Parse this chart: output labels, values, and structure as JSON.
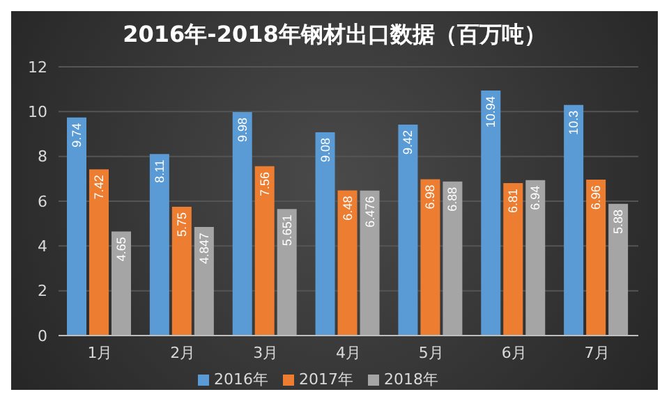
{
  "chart_data": {
    "type": "bar",
    "title": "2016年-2018年钢材出口数据（百万吨）",
    "categories": [
      "1月",
      "2月",
      "3月",
      "4月",
      "5月",
      "6月",
      "7月"
    ],
    "series": [
      {
        "name": "2016年",
        "color": "#5b9bd5",
        "values": [
          9.74,
          8.11,
          9.98,
          9.08,
          9.42,
          10.94,
          10.3
        ]
      },
      {
        "name": "2017年",
        "color": "#ed7d31",
        "values": [
          7.42,
          5.75,
          7.56,
          6.48,
          6.98,
          6.81,
          6.96
        ]
      },
      {
        "name": "2018年",
        "color": "#a5a5a5",
        "values": [
          4.65,
          4.847,
          5.651,
          6.476,
          6.88,
          6.94,
          5.88
        ]
      }
    ],
    "ylim": [
      0,
      12
    ],
    "yticks": [
      0,
      2,
      4,
      6,
      8,
      10,
      12
    ],
    "grid": "y",
    "legend": "bottom",
    "data_labels": true
  }
}
